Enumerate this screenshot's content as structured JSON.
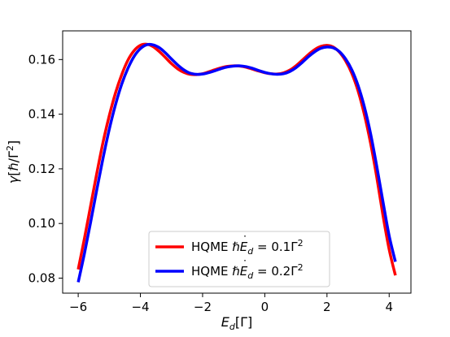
{
  "chart_data": {
    "type": "line",
    "title": "",
    "xlabel": {
      "symbol": "E",
      "sub": "d",
      "unit": "[Γ]"
    },
    "ylabel": {
      "symbol": "γ",
      "unit": "[ℏ/Γ",
      "sup": "2",
      "close": "]"
    },
    "xlim": [
      -6.5,
      4.7
    ],
    "ylim": [
      0.0745,
      0.1705
    ],
    "xticks": [
      -6,
      -4,
      -2,
      0,
      2,
      4
    ],
    "yticks": [
      0.08,
      0.1,
      0.12,
      0.14,
      0.16
    ],
    "xtick_labels": [
      "−6",
      "−4",
      "−2",
      "0",
      "2",
      "4"
    ],
    "ytick_labels": [
      "0.08",
      "0.10",
      "0.12",
      "0.14",
      "0.16"
    ],
    "grid": false,
    "legend_position": "lower center",
    "series": [
      {
        "name": "HQME ℏĖ_d = 0.1Γ^2",
        "legend": {
          "prefix": "HQME ",
          "hbar": "ℏ",
          "E": "E",
          "sub": "d",
          "eq": " = 0.1Γ",
          "sup": "2"
        },
        "color": "#ff0000",
        "x": [
          -6.0,
          -5.8,
          -5.6,
          -5.4,
          -5.2,
          -5.0,
          -4.8,
          -4.6,
          -4.4,
          -4.2,
          -4.0,
          -3.8,
          -3.6,
          -3.4,
          -3.2,
          -3.0,
          -2.8,
          -2.6,
          -2.4,
          -2.2,
          -2.0,
          -1.8,
          -1.6,
          -1.4,
          -1.2,
          -1.0,
          -0.8,
          -0.6,
          -0.4,
          -0.2,
          0.0,
          0.2,
          0.4,
          0.6,
          0.8,
          1.0,
          1.2,
          1.4,
          1.6,
          1.8,
          2.0,
          2.2,
          2.4,
          2.6,
          2.8,
          3.0,
          3.2,
          3.4,
          3.6,
          3.8,
          4.0,
          4.2
        ],
        "y": [
          0.0832,
          0.0945,
          0.1065,
          0.1185,
          0.1298,
          0.1395,
          0.1478,
          0.1545,
          0.1598,
          0.1633,
          0.1652,
          0.1656,
          0.1648,
          0.163,
          0.1608,
          0.1585,
          0.1566,
          0.1553,
          0.1546,
          0.1545,
          0.1548,
          0.1555,
          0.1563,
          0.157,
          0.1575,
          0.1577,
          0.1576,
          0.1572,
          0.1565,
          0.1558,
          0.1552,
          0.1548,
          0.1547,
          0.1551,
          0.1561,
          0.1577,
          0.1597,
          0.1618,
          0.1636,
          0.1648,
          0.1652,
          0.1646,
          0.1627,
          0.1595,
          0.1549,
          0.1485,
          0.14,
          0.1295,
          0.117,
          0.103,
          0.0905,
          0.081
        ]
      },
      {
        "name": "HQME ℏĖ_d = 0.2Γ^2",
        "legend": {
          "prefix": "HQME ",
          "hbar": "ℏ",
          "E": "E",
          "sub": "d",
          "eq": " = 0.2Γ",
          "sup": "2"
        },
        "color": "#0000ff",
        "x": [
          -6.0,
          -5.8,
          -5.6,
          -5.4,
          -5.2,
          -5.0,
          -4.8,
          -4.6,
          -4.4,
          -4.2,
          -4.0,
          -3.8,
          -3.6,
          -3.4,
          -3.2,
          -3.0,
          -2.8,
          -2.6,
          -2.4,
          -2.2,
          -2.0,
          -1.8,
          -1.6,
          -1.4,
          -1.2,
          -1.0,
          -0.8,
          -0.6,
          -0.4,
          -0.2,
          0.0,
          0.2,
          0.4,
          0.6,
          0.8,
          1.0,
          1.2,
          1.4,
          1.6,
          1.8,
          2.0,
          2.2,
          2.4,
          2.6,
          2.8,
          3.0,
          3.2,
          3.4,
          3.6,
          3.8,
          4.0,
          4.2
        ],
        "y": [
          0.0785,
          0.089,
          0.1005,
          0.1125,
          0.124,
          0.1345,
          0.1435,
          0.151,
          0.1568,
          0.1612,
          0.164,
          0.1654,
          0.1654,
          0.1644,
          0.1625,
          0.1602,
          0.158,
          0.1562,
          0.155,
          0.1546,
          0.1547,
          0.1552,
          0.1559,
          0.1567,
          0.1573,
          0.1576,
          0.1577,
          0.1574,
          0.1568,
          0.156,
          0.1553,
          0.1548,
          0.1546,
          0.1548,
          0.1556,
          0.157,
          0.1589,
          0.161,
          0.1628,
          0.1641,
          0.1646,
          0.1643,
          0.1629,
          0.1602,
          0.1562,
          0.1505,
          0.1428,
          0.133,
          0.121,
          0.108,
          0.0955,
          0.086
        ]
      }
    ]
  }
}
